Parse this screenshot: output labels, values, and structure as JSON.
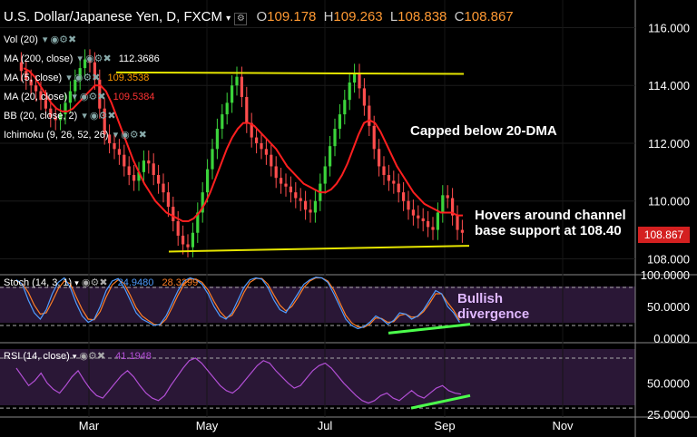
{
  "header": {
    "title": "U.S. Dollar/Japanese Yen, D, FXCM",
    "o_label": "O",
    "o_value": "109.178",
    "h_label": "H",
    "h_value": "109.263",
    "l_label": "L",
    "l_value": "108.838",
    "c_label": "C",
    "c_value": "108.867"
  },
  "indicators": [
    {
      "label": "Vol (20)",
      "value": "",
      "color": "#ffffff"
    },
    {
      "label": "MA (200, close)",
      "value": "112.3686",
      "color": "#ffffff"
    },
    {
      "label": "MA (5, close)",
      "value": "109.3538",
      "color": "#ff9900"
    },
    {
      "label": "MA (20, close)",
      "value": "109.5384",
      "color": "#ff3333"
    },
    {
      "label": "BB (20, close, 2)",
      "value": "",
      "color": "#ffffff"
    },
    {
      "label": "Ichimoku (9, 26, 52, 26)",
      "value": "",
      "color": "#ffffff"
    }
  ],
  "stoch": {
    "label": "Stoch (14, 3, 1)",
    "v1": "24.9480",
    "v2": "28.3299",
    "c1": "#4f9cff",
    "c2": "#ff7f27"
  },
  "rsi": {
    "label": "RSI (14, close)",
    "v1": "41.1948",
    "c1": "#b34fd6"
  },
  "annotations": {
    "capped": "Capped below 20-DMA",
    "hovers": "Hovers around channel",
    "support": "base support at 108.40",
    "bullish": "Bullish",
    "divergence": "divergence"
  },
  "price_tag": "108.867",
  "colors": {
    "up": "#3bd43b",
    "down": "#ff4d4d",
    "ma20": "#ff1f1f",
    "channel": "#e6e600",
    "diverge": "#4cff4c",
    "panel": "#2a1736"
  },
  "chart_data": {
    "type": "line",
    "x_ticks": [
      "Mar",
      "May",
      "Jul",
      "Sep",
      "Nov"
    ],
    "price_axis": [
      "116.000",
      "114.000",
      "112.000",
      "110.000",
      "108.000"
    ],
    "price_ylim": [
      107.7,
      116.8
    ],
    "stoch_axis": [
      "100.0000",
      "50.0000",
      "0.0000"
    ],
    "rsi_axis": [
      "50.0000",
      "25.0000"
    ],
    "price_series": [
      114.8,
      114.5,
      114.2,
      114.0,
      113.8,
      113.5,
      113.2,
      112.9,
      112.8,
      113.0,
      113.4,
      113.8,
      114.2,
      114.6,
      114.9,
      114.8,
      114.2,
      113.2,
      112.3,
      112.0,
      111.8,
      111.6,
      111.2,
      110.9,
      110.7,
      111.0,
      111.4,
      111.3,
      110.9,
      110.6,
      110.3,
      109.8,
      109.3,
      108.8,
      108.5,
      108.4,
      108.9,
      109.6,
      110.3,
      111.1,
      111.8,
      112.5,
      113.0,
      113.4,
      114.0,
      114.3,
      113.6,
      112.7,
      112.2,
      112.0,
      111.8,
      111.6,
      111.2,
      110.8,
      110.6,
      110.5,
      110.3,
      110.1,
      110.0,
      109.7,
      109.6,
      110.0,
      110.6,
      111.2,
      111.9,
      112.5,
      113.0,
      113.5,
      114.1,
      114.4,
      113.9,
      113.3,
      112.6,
      111.8,
      111.2,
      110.9,
      110.7,
      110.6,
      110.3,
      110.0,
      109.7,
      109.5,
      109.4,
      109.3,
      109.1,
      109.0,
      109.6,
      110.2,
      110.1,
      109.5,
      109.0,
      108.9
    ],
    "ma20_series": [
      114.6,
      114.5,
      114.3,
      114.0,
      113.7,
      113.4,
      113.2,
      113.1,
      113.1,
      113.2,
      113.4,
      113.6,
      113.8,
      114.0,
      114.0,
      113.8,
      113.4,
      112.9,
      112.4,
      111.9,
      111.4,
      111.0,
      110.6,
      110.3,
      110.0,
      109.8,
      109.6,
      109.5,
      109.4,
      109.3,
      109.3,
      109.4,
      109.6,
      109.9,
      110.3,
      110.8,
      111.3,
      111.8,
      112.2,
      112.5,
      112.7,
      112.7,
      112.6,
      112.4,
      112.2,
      112.0,
      111.8,
      111.5,
      111.2,
      111.0,
      110.8,
      110.6,
      110.5,
      110.4,
      110.3,
      110.3,
      110.4,
      110.6,
      110.9,
      111.3,
      111.8,
      112.3,
      112.7,
      112.8,
      112.7,
      112.4,
      112.0,
      111.6,
      111.2,
      110.9,
      110.6,
      110.3,
      110.1,
      109.9,
      109.8,
      109.7,
      109.6,
      109.6,
      109.6,
      109.5,
      109.5
    ],
    "channel_top": {
      "from": [
        0.5,
        114.45
      ],
      "to": [
        33.3,
        114.4
      ]
    },
    "channel_bottom": {
      "from": [
        0.8,
        108.25
      ],
      "to": [
        48.4,
        108.45
      ]
    },
    "stoch_k": [
      92,
      85,
      60,
      40,
      30,
      45,
      70,
      88,
      95,
      80,
      55,
      35,
      25,
      30,
      50,
      75,
      90,
      94,
      80,
      60,
      40,
      30,
      25,
      20,
      22,
      35,
      55,
      75,
      90,
      95,
      92,
      85,
      70,
      50,
      35,
      30,
      40,
      60,
      80,
      92,
      95,
      93,
      80,
      60,
      45,
      40,
      55,
      70,
      85,
      92,
      96,
      95,
      88,
      70,
      50,
      30,
      20,
      15,
      18,
      25,
      35,
      30,
      22,
      28,
      40,
      38,
      30,
      35,
      45,
      60,
      75,
      70,
      50,
      40,
      24.9
    ],
    "stoch_d": [
      90,
      86,
      72,
      52,
      38,
      40,
      58,
      78,
      90,
      86,
      65,
      45,
      30,
      29,
      42,
      65,
      84,
      92,
      86,
      68,
      48,
      35,
      28,
      22,
      21,
      30,
      48,
      68,
      85,
      93,
      93,
      88,
      76,
      58,
      42,
      32,
      36,
      52,
      72,
      88,
      94,
      94,
      85,
      68,
      52,
      43,
      50,
      64,
      80,
      90,
      95,
      95,
      90,
      76,
      56,
      36,
      24,
      18,
      17,
      22,
      32,
      31,
      25,
      26,
      36,
      38,
      33,
      34,
      42,
      55,
      70,
      70,
      56,
      44,
      28.3
    ],
    "rsi": [
      62,
      55,
      48,
      52,
      58,
      50,
      45,
      42,
      48,
      55,
      60,
      52,
      45,
      40,
      38,
      44,
      50,
      56,
      60,
      55,
      48,
      42,
      38,
      36,
      40,
      48,
      55,
      62,
      68,
      70,
      66,
      60,
      54,
      48,
      44,
      42,
      46,
      52,
      58,
      64,
      68,
      66,
      60,
      55,
      50,
      46,
      48,
      54,
      60,
      64,
      66,
      62,
      56,
      50,
      45,
      40,
      36,
      34,
      36,
      40,
      42,
      38,
      36,
      40,
      44,
      40,
      38,
      42,
      46,
      48,
      44,
      42,
      41.2
    ],
    "stoch_divergence_line": {
      "from": [
        36,
        8
      ],
      "to": [
        47.5,
        22
      ]
    },
    "rsi_divergence_line": {
      "from": [
        40,
        30
      ],
      "to": [
        47.5,
        40
      ]
    }
  }
}
